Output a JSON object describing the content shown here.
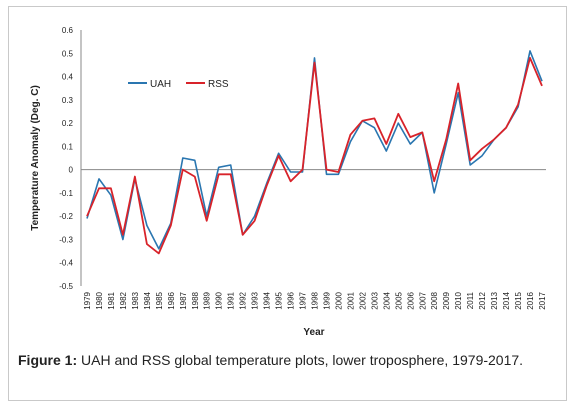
{
  "chart_data": {
    "type": "line",
    "title": "",
    "xlabel": "Year",
    "ylabel": "Temperature Anomaly (Deg. C)",
    "ylim": [
      -0.5,
      0.6
    ],
    "yticks": [
      "0.6",
      "0.5",
      "0.4",
      "0.3",
      "0.2",
      "0.1",
      "0",
      "-0.1",
      "-0.2",
      "-0.3",
      "-0.4",
      "-0.5"
    ],
    "x": [
      "1979",
      "1980",
      "1981",
      "1982",
      "1983",
      "1984",
      "1985",
      "1986",
      "1987",
      "1988",
      "1989",
      "1990",
      "1991",
      "1992",
      "1993",
      "1994",
      "1995",
      "1996",
      "1997",
      "1998",
      "1999",
      "2000",
      "2001",
      "2002",
      "2003",
      "2004",
      "2005",
      "2006",
      "2007",
      "2008",
      "2009",
      "2010",
      "2011",
      "2012",
      "2013",
      "2014",
      "2015",
      "2016",
      "2017"
    ],
    "legend_position": "upper-left",
    "grid": false,
    "series": [
      {
        "name": "UAH",
        "color": "#2a76b0",
        "values": [
          -0.21,
          -0.04,
          -0.11,
          -0.3,
          -0.04,
          -0.24,
          -0.34,
          -0.23,
          0.05,
          0.04,
          -0.2,
          0.01,
          0.02,
          -0.28,
          -0.2,
          -0.06,
          0.07,
          -0.01,
          -0.01,
          0.48,
          -0.02,
          -0.02,
          0.12,
          0.21,
          0.18,
          0.08,
          0.2,
          0.11,
          0.16,
          -0.1,
          0.11,
          0.33,
          0.02,
          0.06,
          0.13,
          0.18,
          0.27,
          0.51,
          0.38
        ]
      },
      {
        "name": "RSS",
        "color": "#d8232a",
        "values": [
          -0.2,
          -0.08,
          -0.08,
          -0.28,
          -0.03,
          -0.32,
          -0.36,
          -0.24,
          0.0,
          -0.03,
          -0.22,
          -0.02,
          -0.02,
          -0.28,
          -0.22,
          -0.07,
          0.06,
          -0.05,
          0.0,
          0.46,
          0.0,
          -0.01,
          0.15,
          0.21,
          0.22,
          0.11,
          0.24,
          0.14,
          0.16,
          -0.05,
          0.13,
          0.37,
          0.04,
          0.09,
          0.13,
          0.18,
          0.28,
          0.48,
          0.36
        ]
      }
    ]
  },
  "caption": {
    "label": "Figure 1:",
    "text": " UAH and RSS global temperature plots, lower troposphere, 1979-2017."
  }
}
